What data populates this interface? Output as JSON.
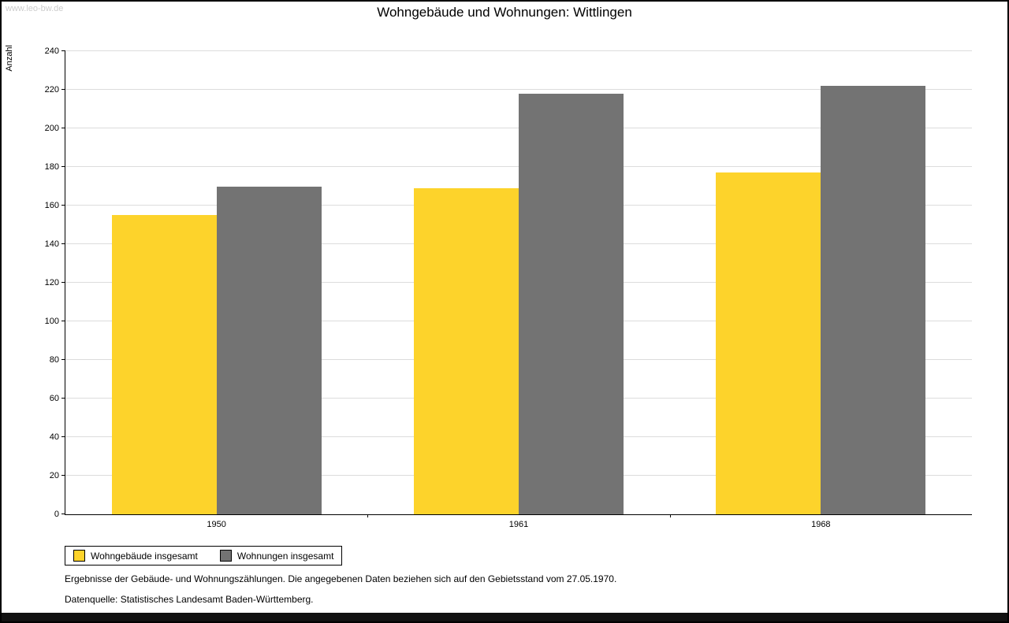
{
  "watermark": "www.leo-bw.de",
  "title": "Wohngebäude und Wohnungen: Wittlingen",
  "chart_data": {
    "type": "bar",
    "categories": [
      "1950",
      "1961",
      "1968"
    ],
    "series": [
      {
        "name": "Wohngebäude insgesamt",
        "color": "#FDD32B",
        "values": [
          155,
          169,
          177
        ]
      },
      {
        "name": "Wohnungen insgesamt",
        "color": "#737373",
        "values": [
          170,
          218,
          222
        ]
      }
    ],
    "title": "Wohngebäude und Wohnungen: Wittlingen",
    "xlabel": "",
    "ylabel": "Anzahl",
    "ylim": [
      0,
      240
    ],
    "ytick_step": 20,
    "grid": true,
    "legend_position": "bottom-left"
  },
  "footnotes": {
    "line1": "Ergebnisse der Gebäude- und Wohnungszählungen. Die angegebenen Daten beziehen sich auf den Gebietsstand vom 27.05.1970.",
    "line2": "Datenquelle: Statistisches Landesamt Baden-Württemberg."
  }
}
